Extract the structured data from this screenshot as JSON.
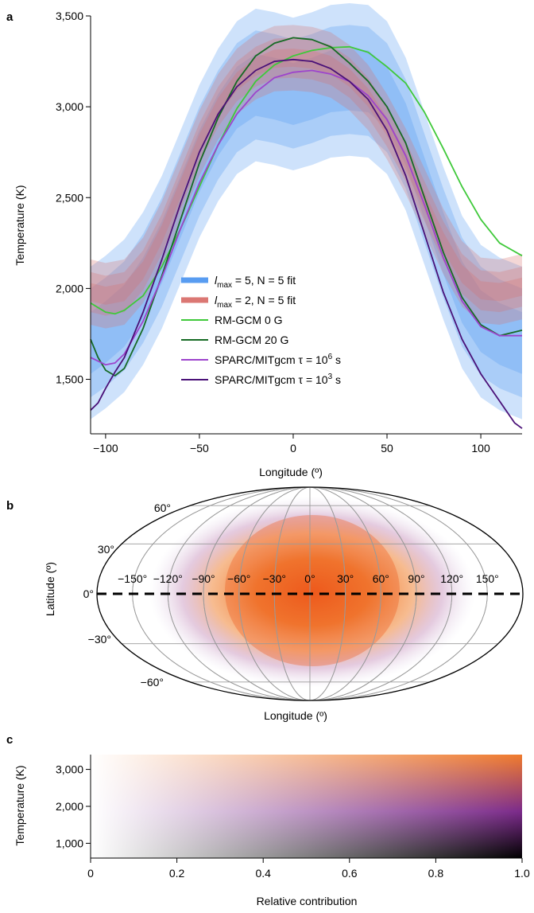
{
  "panels": {
    "a": {
      "letter": "a"
    },
    "b": {
      "letter": "b"
    },
    "c": {
      "letter": "c"
    }
  },
  "chart_data": [
    {
      "type": "line",
      "panel": "a",
      "xlabel": "Longitude (º)",
      "ylabel": "Temperature (K)",
      "xlim": [
        -108,
        122
      ],
      "ylim": [
        1200,
        3500
      ],
      "xticks": [
        -100,
        -50,
        0,
        50,
        100
      ],
      "xtick_labels": [
        "−100",
        "−50",
        "0",
        "50",
        "100"
      ],
      "yticks": [
        1500,
        2000,
        2500,
        3000,
        3500
      ],
      "ytick_labels": [
        "1,500",
        "2,000",
        "2,500",
        "3,000",
        "3,500"
      ],
      "legend_position": "lower-center",
      "bands": [
        {
          "name_prefix": "l",
          "name_sub": "max",
          "name_suffix": " = 5, N = 5 fit",
          "color": "#4f97f0",
          "x": [
            -108,
            -100,
            -90,
            -80,
            -70,
            -60,
            -50,
            -40,
            -30,
            -20,
            -10,
            0,
            10,
            20,
            30,
            40,
            50,
            60,
            70,
            80,
            90,
            100,
            110,
            122
          ],
          "center": [
            1700,
            1760,
            1850,
            2000,
            2200,
            2450,
            2700,
            2900,
            3050,
            3120,
            3100,
            3070,
            3100,
            3140,
            3150,
            3140,
            3050,
            2850,
            2550,
            2250,
            1980,
            1820,
            1750,
            1700
          ],
          "spreads": [
            420,
            300,
            170
          ]
        },
        {
          "name_prefix": "l",
          "name_sub": "max",
          "name_suffix": " = 2, N = 5 fit",
          "color": "#d9706c",
          "x": [
            -108,
            -100,
            -90,
            -80,
            -70,
            -60,
            -50,
            -40,
            -30,
            -20,
            -10,
            0,
            10,
            20,
            30,
            40,
            50,
            60,
            70,
            80,
            90,
            100,
            110,
            122
          ],
          "center": [
            1980,
            1960,
            1980,
            2100,
            2300,
            2550,
            2800,
            3000,
            3140,
            3220,
            3265,
            3270,
            3260,
            3230,
            3160,
            3050,
            2890,
            2700,
            2480,
            2260,
            2080,
            1990,
            1980,
            2010
          ],
          "spreads": [
            180,
            110,
            50
          ]
        }
      ],
      "series": [
        {
          "name": "RM-GCM 0 G",
          "color": "#3fc93a",
          "x": [
            -108,
            -100,
            -95,
            -90,
            -80,
            -70,
            -60,
            -50,
            -40,
            -30,
            -20,
            -10,
            0,
            10,
            20,
            30,
            40,
            45,
            50,
            60,
            70,
            80,
            90,
            100,
            110,
            122
          ],
          "y": [
            1920,
            1870,
            1860,
            1880,
            1960,
            2120,
            2330,
            2560,
            2790,
            2990,
            3140,
            3230,
            3280,
            3310,
            3325,
            3330,
            3300,
            3260,
            3220,
            3130,
            2970,
            2770,
            2560,
            2380,
            2250,
            2180
          ]
        },
        {
          "name": "RM-GCM 20 G",
          "color": "#166a24",
          "x": [
            -108,
            -104,
            -100,
            -95,
            -90,
            -80,
            -70,
            -60,
            -50,
            -40,
            -30,
            -20,
            -10,
            0,
            10,
            20,
            30,
            40,
            50,
            60,
            70,
            80,
            90,
            100,
            110,
            122
          ],
          "y": [
            1720,
            1620,
            1550,
            1520,
            1560,
            1780,
            2070,
            2380,
            2690,
            2940,
            3140,
            3280,
            3350,
            3380,
            3370,
            3330,
            3240,
            3140,
            3000,
            2800,
            2500,
            2200,
            1950,
            1800,
            1740,
            1770
          ]
        },
        {
          "name_prefix": "SPARC/MITgcm τ = 10",
          "name_sup": "6",
          "name_suffix": " s",
          "color": "#9d44cc",
          "x": [
            -108,
            -100,
            -95,
            -90,
            -80,
            -70,
            -60,
            -50,
            -40,
            -30,
            -20,
            -10,
            0,
            10,
            20,
            30,
            40,
            50,
            60,
            70,
            80,
            90,
            100,
            110,
            122
          ],
          "y": [
            1620,
            1580,
            1590,
            1640,
            1820,
            2060,
            2330,
            2580,
            2790,
            2960,
            3080,
            3160,
            3190,
            3200,
            3180,
            3140,
            3060,
            2930,
            2730,
            2460,
            2170,
            1930,
            1790,
            1740,
            1740
          ]
        },
        {
          "name_prefix": "SPARC/MITgcm τ = 10",
          "name_sup": "3",
          "name_suffix": " s",
          "color": "#4a1178",
          "x": [
            -108,
            -104,
            -100,
            -95,
            -90,
            -80,
            -70,
            -60,
            -50,
            -40,
            -30,
            -20,
            -10,
            0,
            10,
            20,
            30,
            40,
            50,
            60,
            70,
            80,
            90,
            100,
            110,
            118,
            122
          ],
          "y": [
            1330,
            1370,
            1450,
            1540,
            1620,
            1870,
            2160,
            2470,
            2750,
            2960,
            3110,
            3200,
            3250,
            3260,
            3250,
            3210,
            3140,
            3040,
            2870,
            2620,
            2300,
            1980,
            1720,
            1530,
            1380,
            1260,
            1230
          ]
        }
      ]
    },
    {
      "type": "heatmap",
      "panel": "b",
      "projection": "mollweide",
      "xlabel": "Longitude (º)",
      "ylabel": "Latitude (º)",
      "longitude_labels": [
        "−150°",
        "−120°",
        "−90°",
        "−60°",
        "−30°",
        "0°",
        "30°",
        "60°",
        "90°",
        "120°",
        "150°"
      ],
      "latitude_labels": [
        "60°",
        "30°",
        "0°",
        "−30°",
        "−60°"
      ],
      "hotspot_center_lon": 10,
      "hotspot_center_lat": 0,
      "equator_line": "dashed"
    },
    {
      "type": "heatmap",
      "panel": "c",
      "xlabel": "Relative contribution",
      "ylabel": "Temperature (K)",
      "xlim": [
        0,
        1
      ],
      "ylim": [
        600,
        3400
      ],
      "xticks": [
        0,
        0.2,
        0.4,
        0.6,
        0.8,
        1.0
      ],
      "xtick_labels": [
        "0",
        "0.2",
        "0.4",
        "0.6",
        "0.8",
        "1.0"
      ],
      "yticks": [
        1000,
        2000,
        3000
      ],
      "ytick_labels": [
        "1,000",
        "2,000",
        "3,000"
      ],
      "colors": {
        "hot": "#f07b2c",
        "mid": "#7b2a8a",
        "cold": "#000000"
      }
    }
  ]
}
